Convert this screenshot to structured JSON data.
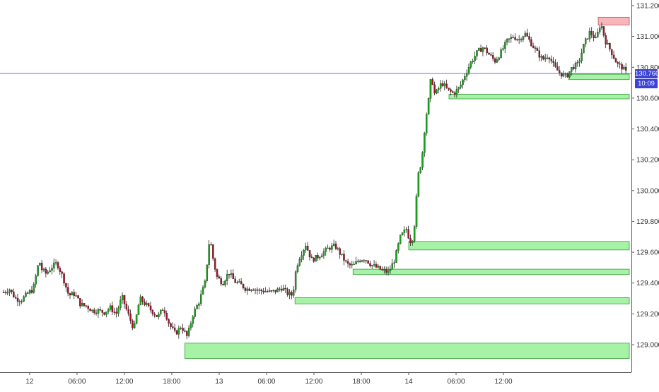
{
  "chart_data": {
    "type": "candlestick",
    "title": "",
    "x_ticks": [
      "12",
      "06:00",
      "12:00",
      "18:00",
      "13",
      "06:00",
      "12:00",
      "18:00",
      "14",
      "06:00",
      "12:00"
    ],
    "y_ticks": [
      "129.000",
      "129.200",
      "129.400",
      "129.600",
      "129.800",
      "130.000",
      "130.200",
      "130.400",
      "130.600",
      "130.800",
      "131.000",
      "131.200"
    ],
    "y_tick_values": [
      129.0,
      129.2,
      129.4,
      129.6,
      129.8,
      130.0,
      130.2,
      130.4,
      130.6,
      130.8,
      131.0,
      131.2
    ],
    "ylim": [
      128.86,
      131.25
    ],
    "current_price": {
      "label": "130.760",
      "value": 130.76,
      "countdown": "10:09"
    },
    "colors": {
      "up": "#1aa21a",
      "down": "#a0152a",
      "demand_zone": "#a6f2a6",
      "supply_zone": "#f7b6ba",
      "price_line": "#3d42d6"
    },
    "demand_zones": [
      {
        "from_time": 15.3,
        "y_low": 128.91,
        "y_high": 129.01
      },
      {
        "from_time": 24.6,
        "y_low": 129.265,
        "y_high": 129.305
      },
      {
        "from_time": 29.5,
        "y_low": 129.455,
        "y_high": 129.49
      },
      {
        "from_time": 34.2,
        "y_low": 129.615,
        "y_high": 129.67
      },
      {
        "from_time": 37.6,
        "y_low": 130.595,
        "y_high": 130.625
      },
      {
        "from_time": 47.7,
        "y_low": 130.72,
        "y_high": 130.755
      }
    ],
    "supply_zones": [
      {
        "from_time": 50.2,
        "y_low": 131.075,
        "y_high": 131.125
      }
    ],
    "price_path": [
      [
        0,
        129.34
      ],
      [
        0.5,
        129.36
      ],
      [
        1,
        129.3
      ],
      [
        1.5,
        129.29
      ],
      [
        2,
        129.33
      ],
      [
        2.5,
        129.36
      ],
      [
        3,
        129.55
      ],
      [
        3.2,
        129.49
      ],
      [
        3.6,
        129.46
      ],
      [
        4,
        129.5
      ],
      [
        4.5,
        129.53
      ],
      [
        5,
        129.44
      ],
      [
        5.5,
        129.32
      ],
      [
        6,
        129.33
      ],
      [
        6.5,
        129.26
      ],
      [
        7,
        129.25
      ],
      [
        7.5,
        129.22
      ],
      [
        8,
        129.22
      ],
      [
        8.5,
        129.21
      ],
      [
        9,
        129.24
      ],
      [
        9.5,
        129.2
      ],
      [
        10,
        129.31
      ],
      [
        10.5,
        129.2
      ],
      [
        11,
        129.1
      ],
      [
        11.5,
        129.3
      ],
      [
        12,
        129.26
      ],
      [
        12.5,
        129.22
      ],
      [
        13,
        129.18
      ],
      [
        13.5,
        129.24
      ],
      [
        14,
        129.13
      ],
      [
        14.5,
        129.07
      ],
      [
        15,
        129.12
      ],
      [
        15.5,
        129.05
      ],
      [
        16,
        129.2
      ],
      [
        16.5,
        129.28
      ],
      [
        17,
        129.4
      ],
      [
        17.4,
        129.7
      ],
      [
        17.7,
        129.55
      ],
      [
        18,
        129.44
      ],
      [
        18.5,
        129.4
      ],
      [
        19,
        129.47
      ],
      [
        19.5,
        129.41
      ],
      [
        20,
        129.39
      ],
      [
        20.5,
        129.36
      ],
      [
        21,
        129.37
      ],
      [
        21.5,
        129.35
      ],
      [
        22,
        129.35
      ],
      [
        22.5,
        129.34
      ],
      [
        23,
        129.35
      ],
      [
        23.5,
        129.37
      ],
      [
        24,
        129.33
      ],
      [
        24.4,
        129.32
      ],
      [
        24.7,
        129.5
      ],
      [
        25,
        129.57
      ],
      [
        25.5,
        129.65
      ],
      [
        26,
        129.55
      ],
      [
        26.5,
        129.57
      ],
      [
        27,
        129.6
      ],
      [
        27.5,
        129.63
      ],
      [
        28,
        129.64
      ],
      [
        28.5,
        129.58
      ],
      [
        29,
        129.52
      ],
      [
        29.5,
        129.51
      ],
      [
        30,
        129.55
      ],
      [
        30.5,
        129.56
      ],
      [
        31,
        129.52
      ],
      [
        31.5,
        129.5
      ],
      [
        32,
        129.48
      ],
      [
        32.5,
        129.47
      ],
      [
        33,
        129.55
      ],
      [
        33.5,
        129.7
      ],
      [
        34,
        129.75
      ],
      [
        34.3,
        129.67
      ],
      [
        34.6,
        129.7
      ],
      [
        35,
        130.1
      ],
      [
        35.3,
        130.2
      ],
      [
        35.6,
        130.45
      ],
      [
        35.9,
        130.6
      ],
      [
        36.1,
        130.75
      ],
      [
        36.4,
        130.62
      ],
      [
        37,
        130.7
      ],
      [
        37.5,
        130.65
      ],
      [
        38,
        130.63
      ],
      [
        38.5,
        130.67
      ],
      [
        39,
        130.76
      ],
      [
        39.5,
        130.84
      ],
      [
        40,
        130.9
      ],
      [
        40.5,
        130.93
      ],
      [
        41,
        130.88
      ],
      [
        41.5,
        130.84
      ],
      [
        42,
        130.9
      ],
      [
        42.5,
        130.97
      ],
      [
        43,
        131.0
      ],
      [
        43.5,
        130.98
      ],
      [
        44,
        131.02
      ],
      [
        44.5,
        130.96
      ],
      [
        45,
        130.9
      ],
      [
        45.5,
        130.85
      ],
      [
        46,
        130.88
      ],
      [
        46.5,
        130.8
      ],
      [
        47,
        130.76
      ],
      [
        47.5,
        130.74
      ],
      [
        48,
        130.8
      ],
      [
        48.5,
        130.82
      ],
      [
        49,
        130.95
      ],
      [
        49.5,
        131.03
      ],
      [
        50,
        130.98
      ],
      [
        50.4,
        131.09
      ],
      [
        50.8,
        130.97
      ],
      [
        51.3,
        130.9
      ],
      [
        51.8,
        130.82
      ],
      [
        52.2,
        130.8
      ],
      [
        52.6,
        130.76
      ]
    ]
  }
}
